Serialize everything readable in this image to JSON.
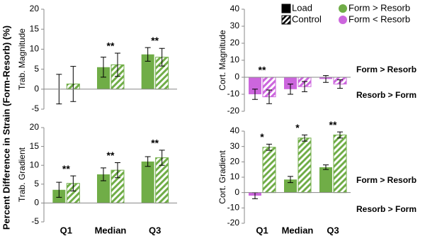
{
  "ylabel": "Percent Difference in Strain (Form-Resorb) (%)",
  "legend": [
    {
      "label": "Load",
      "pattern": "solid"
    },
    {
      "label": "Control",
      "pattern": "hatch"
    },
    {
      "label": "Form > Resorb",
      "color": "#70ad47"
    },
    {
      "label": "Form < Resorb",
      "color": "#cc66dd"
    }
  ],
  "chart_data": [
    {
      "type": "bar",
      "ylabel": "Trab. Magnitude",
      "ylim": [
        -5,
        20
      ],
      "yticks": [
        -5,
        0,
        5,
        10,
        15,
        20
      ],
      "categories": [
        null,
        null,
        null
      ],
      "significance": [
        null,
        "**",
        "**"
      ],
      "series": [
        {
          "pattern": "solid",
          "values": [
            0,
            5.5,
            8.7
          ],
          "errors": [
            3.7,
            2.5,
            1.7
          ]
        },
        {
          "pattern": "hatch",
          "values": [
            1.3,
            6.1,
            8.0
          ],
          "errors": [
            4.4,
            2.9,
            2.2
          ]
        }
      ]
    },
    {
      "type": "bar",
      "ylabel": "Cort. Magnitude",
      "ylim": [
        -20,
        40
      ],
      "yticks": [
        -20,
        -10,
        0,
        10,
        20,
        30,
        40
      ],
      "categories": [
        null,
        null,
        null
      ],
      "significance": [
        "**",
        null,
        null
      ],
      "annotations": [
        "Form > Resorb",
        "Resorb > Form"
      ],
      "series": [
        {
          "pattern": "solid",
          "values": [
            -10,
            -7,
            -1
          ],
          "errors": [
            3,
            3,
            2
          ]
        },
        {
          "pattern": "hatch",
          "values": [
            -11.5,
            -5.5,
            -4
          ],
          "errors": [
            4,
            3,
            2.5
          ]
        }
      ]
    },
    {
      "type": "bar",
      "ylabel": "Trab. Gradient",
      "ylim": [
        -5,
        20
      ],
      "yticks": [
        -5,
        0,
        5,
        10,
        15,
        20
      ],
      "categories": [
        "Q1",
        "Median",
        "Q3"
      ],
      "significance": [
        "**",
        "**",
        "**"
      ],
      "series": [
        {
          "pattern": "solid",
          "values": [
            3.5,
            7.6,
            11
          ],
          "errors": [
            2,
            1.7,
            1.3
          ]
        },
        {
          "pattern": "hatch",
          "values": [
            5.2,
            8.7,
            12
          ],
          "errors": [
            2,
            2,
            2
          ]
        }
      ]
    },
    {
      "type": "bar",
      "ylabel": "Cort. Gradient",
      "ylim": [
        -20,
        40
      ],
      "yticks": [
        -20,
        -10,
        0,
        10,
        20,
        30,
        40
      ],
      "categories": [
        "Q1",
        "Median",
        "Q3"
      ],
      "significance": [
        "*",
        "*",
        "**"
      ],
      "annotations": [
        "Form > Resorb",
        "Resorb > Form"
      ],
      "series": [
        {
          "pattern": "solid",
          "values": [
            -2,
            8.5,
            16.5
          ],
          "errors": [
            2,
            2,
            1.5
          ]
        },
        {
          "pattern": "hatch",
          "values": [
            29.5,
            35.5,
            37.5
          ],
          "errors": [
            2,
            2,
            2
          ]
        }
      ]
    }
  ]
}
